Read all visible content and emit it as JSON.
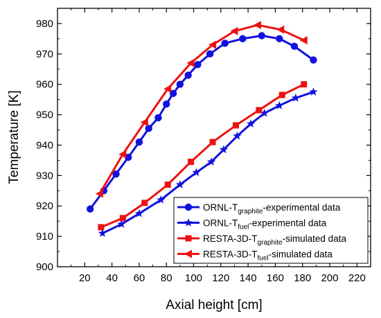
{
  "chart_data": {
    "type": "line",
    "xlabel": "Axial height [cm]",
    "ylabel": "Temperature [K]",
    "xlim": [
      0,
      230
    ],
    "ylim": [
      900,
      985
    ],
    "xticks": [
      20,
      40,
      60,
      80,
      100,
      120,
      140,
      160,
      180,
      200,
      220
    ],
    "yticks": [
      900,
      910,
      920,
      930,
      940,
      950,
      960,
      970,
      980
    ],
    "grid": false,
    "legend_position": "bottom-right",
    "series": [
      {
        "name_main": "ORNL-T",
        "name_sub": "graphite",
        "name_rest": "-experimental data",
        "color": "#1111e0",
        "marker": "circle",
        "x": [
          24,
          34,
          43,
          52,
          60,
          67,
          74,
          80,
          85,
          90,
          96,
          103,
          112,
          123,
          136,
          150,
          163,
          174,
          188
        ],
        "y": [
          919,
          925,
          930.5,
          936,
          941,
          945.5,
          949,
          953.5,
          957,
          960,
          963,
          966.5,
          970,
          973.5,
          975,
          976,
          975,
          972.5,
          968
        ]
      },
      {
        "name_main": "ORNL-T",
        "name_sub": "fuel",
        "name_rest": "-experimental data",
        "color": "#1111e0",
        "marker": "star",
        "x": [
          33,
          47,
          60,
          76,
          90,
          102,
          113,
          122,
          132,
          142,
          152,
          163,
          175,
          188
        ],
        "y": [
          911,
          914,
          917.5,
          922,
          927,
          931,
          934.5,
          938.5,
          943,
          947,
          950.5,
          953,
          955.5,
          957.5
        ]
      },
      {
        "name_main": "RESTA-3D-T",
        "name_sub": "graphite",
        "name_rest": "-simulated data",
        "color": "#ee1111",
        "marker": "square",
        "x": [
          32,
          48,
          64,
          81,
          98,
          114,
          131,
          148,
          165,
          181
        ],
        "y": [
          913,
          916,
          921,
          927,
          934.5,
          941,
          946.5,
          951.5,
          956.5,
          960
        ]
      },
      {
        "name_main": "RESTA-3D-T",
        "name_sub": "fuel",
        "name_rest": "-simulated data",
        "color": "#ee1111",
        "marker": "triangle-left",
        "x": [
          31,
          48,
          64,
          81,
          98,
          114,
          130,
          147,
          164,
          181
        ],
        "y": [
          924,
          937,
          947.5,
          958.5,
          967,
          973,
          977.5,
          979.5,
          978,
          974.5
        ]
      }
    ]
  }
}
